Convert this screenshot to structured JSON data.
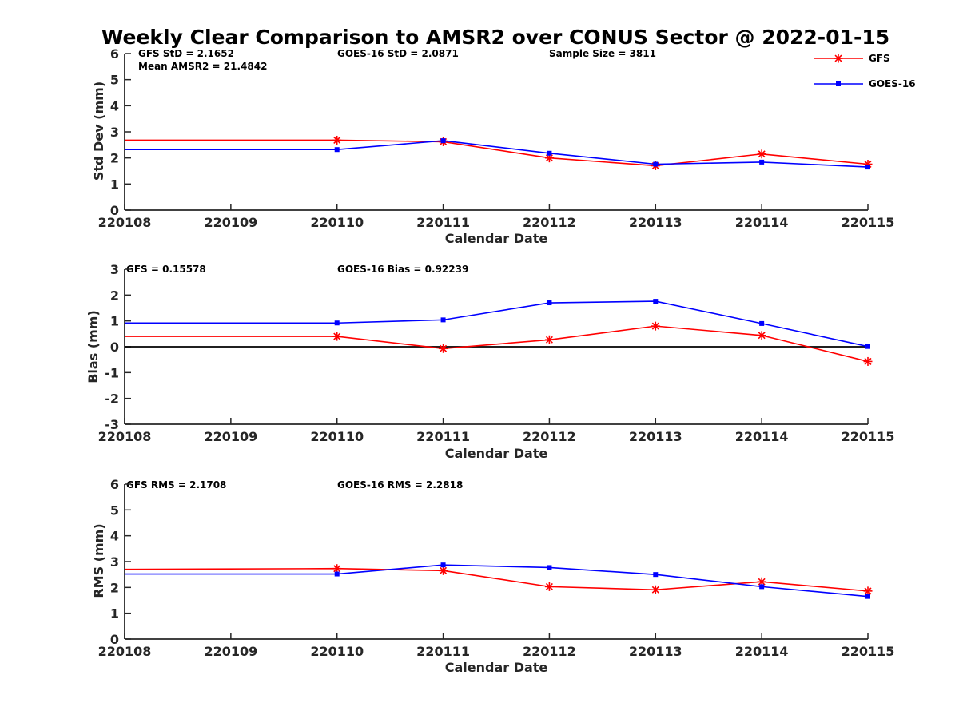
{
  "title": "Weekly Clear Comparison to AMSR2 over CONUS Sector @ 2022-01-15",
  "legend": [
    {
      "name": "GFS",
      "color": "#ff0000",
      "marker": "asterisk"
    },
    {
      "name": "GOES-16",
      "color": "#0000ff",
      "marker": "square"
    }
  ],
  "chart_data": [
    {
      "type": "line",
      "xlabel": "Calendar Date",
      "ylabel": "Std Dev (mm)",
      "x_ticks": [
        "220108",
        "220109",
        "220110",
        "220111",
        "220112",
        "220113",
        "220114",
        "220115"
      ],
      "ylim": [
        0,
        6
      ],
      "y_ticks": [
        "0",
        "1",
        "2",
        "3",
        "4",
        "5",
        "6"
      ],
      "zero_line": false,
      "annotations": {
        "gfs": "GFS StD = 2.1652",
        "mean": "Mean AMSR2 = 21.4842",
        "goes": "GOES-16 StD = 2.0871",
        "sample": "Sample Size = 3811"
      },
      "series": [
        {
          "name": "GFS",
          "color": "#ff0000",
          "marker": "asterisk",
          "x": [
            "220108",
            "220110",
            "220111",
            "220112",
            "220113",
            "220114",
            "220115"
          ],
          "y": [
            2.68,
            2.68,
            2.62,
            2.0,
            1.7,
            2.15,
            1.76
          ]
        },
        {
          "name": "GOES-16",
          "color": "#0000ff",
          "marker": "square",
          "x": [
            "220108",
            "220110",
            "220111",
            "220112",
            "220113",
            "220114",
            "220115"
          ],
          "y": [
            2.32,
            2.32,
            2.66,
            2.18,
            1.76,
            1.84,
            1.65
          ]
        }
      ]
    },
    {
      "type": "line",
      "xlabel": "Calendar Date",
      "ylabel": "Bias (mm)",
      "x_ticks": [
        "220108",
        "220109",
        "220110",
        "220111",
        "220112",
        "220113",
        "220114",
        "220115"
      ],
      "ylim": [
        -3,
        3
      ],
      "y_ticks": [
        "-3",
        "-2",
        "-1",
        "0",
        "1",
        "2",
        "3"
      ],
      "zero_line": true,
      "annotations": {
        "gfs": "GFS = 0.15578",
        "goes": "GOES-16 Bias  = 0.92239"
      },
      "series": [
        {
          "name": "GFS",
          "color": "#ff0000",
          "marker": "asterisk",
          "x": [
            "220108",
            "220110",
            "220111",
            "220112",
            "220113",
            "220114",
            "220115"
          ],
          "y": [
            0.4,
            0.4,
            -0.07,
            0.27,
            0.8,
            0.44,
            -0.57
          ]
        },
        {
          "name": "GOES-16",
          "color": "#0000ff",
          "marker": "square",
          "x": [
            "220108",
            "220110",
            "220111",
            "220112",
            "220113",
            "220114",
            "220115"
          ],
          "y": [
            0.92,
            0.92,
            1.04,
            1.7,
            1.76,
            0.9,
            0.01
          ]
        }
      ]
    },
    {
      "type": "line",
      "xlabel": "Calendar Date",
      "ylabel": "RMS (mm)",
      "x_ticks": [
        "220108",
        "220109",
        "220110",
        "220111",
        "220112",
        "220113",
        "220114",
        "220115"
      ],
      "ylim": [
        0,
        6
      ],
      "y_ticks": [
        "0",
        "1",
        "2",
        "3",
        "4",
        "5",
        "6"
      ],
      "zero_line": false,
      "annotations": {
        "gfs": "GFS RMS = 2.1708",
        "goes": "GOES-16 RMS = 2.2818"
      },
      "series": [
        {
          "name": "GFS",
          "color": "#ff0000",
          "marker": "asterisk",
          "x": [
            "220108",
            "220110",
            "220111",
            "220112",
            "220113",
            "220114",
            "220115"
          ],
          "y": [
            2.7,
            2.73,
            2.65,
            2.03,
            1.91,
            2.22,
            1.86
          ]
        },
        {
          "name": "GOES-16",
          "color": "#0000ff",
          "marker": "square",
          "x": [
            "220108",
            "220110",
            "220111",
            "220112",
            "220113",
            "220114",
            "220115"
          ],
          "y": [
            2.52,
            2.52,
            2.87,
            2.77,
            2.5,
            2.03,
            1.65
          ]
        }
      ]
    }
  ]
}
